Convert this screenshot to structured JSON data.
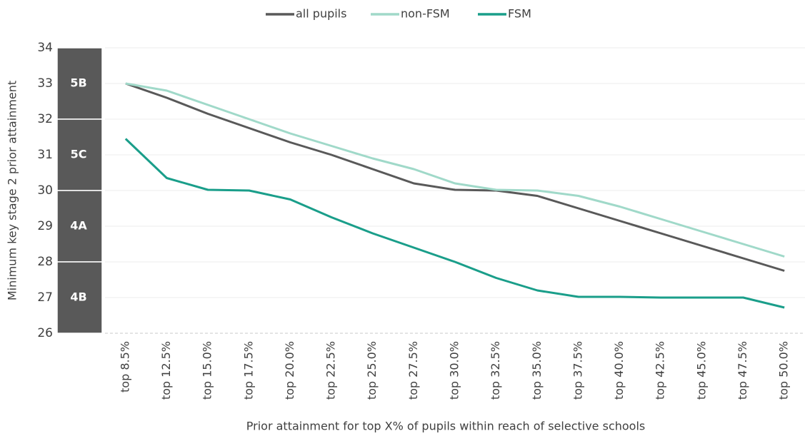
{
  "chart_data": {
    "type": "line",
    "y_label": "Minimum key stage 2 prior attainment",
    "x_label": "Prior attainment for top X% of pupils within reach of selective schools",
    "categories": [
      "top 8.5%",
      "top 12.5%",
      "top 15.0%",
      "top 17.5%",
      "top 20.0%",
      "top 22.5%",
      "top 25.0%",
      "top 27.5%",
      "top 30.0%",
      "top 32.5%",
      "top 35.0%",
      "top 37.5%",
      "top 40.0%",
      "top 42.5%",
      "top 45.0%",
      "top 47.5%",
      "top 50.0%"
    ],
    "series": [
      {
        "name": "all pupils",
        "color": "#595959",
        "values": [
          33.0,
          32.6,
          32.15,
          31.75,
          31.35,
          31.0,
          30.6,
          30.2,
          30.02,
          30.0,
          29.85,
          29.5,
          29.15,
          28.8,
          28.45,
          28.1,
          27.75
        ]
      },
      {
        "name": "non-FSM",
        "color": "#a0d9c9",
        "values": [
          33.0,
          32.8,
          32.4,
          32.0,
          31.6,
          31.25,
          30.9,
          30.6,
          30.2,
          30.02,
          30.0,
          29.85,
          29.55,
          29.2,
          28.85,
          28.5,
          28.15
        ]
      },
      {
        "name": "FSM",
        "color": "#1a9e8a",
        "values": [
          31.45,
          30.35,
          30.02,
          30.0,
          29.75,
          29.25,
          28.8,
          28.4,
          28.0,
          27.55,
          27.2,
          27.02,
          27.02,
          27.0,
          27.0,
          27.0,
          26.72
        ]
      }
    ],
    "bands": [
      {
        "label": "5B",
        "from": 32,
        "to": 34
      },
      {
        "label": "5C",
        "from": 30,
        "to": 32
      },
      {
        "label": "4A",
        "from": 28,
        "to": 30
      },
      {
        "label": "4B",
        "from": 26,
        "to": 28
      }
    ],
    "ylim": [
      26,
      34
    ],
    "yticks": [
      26,
      27,
      28,
      29,
      30,
      31,
      32,
      33,
      34
    ],
    "grid": true,
    "legend": "top"
  }
}
